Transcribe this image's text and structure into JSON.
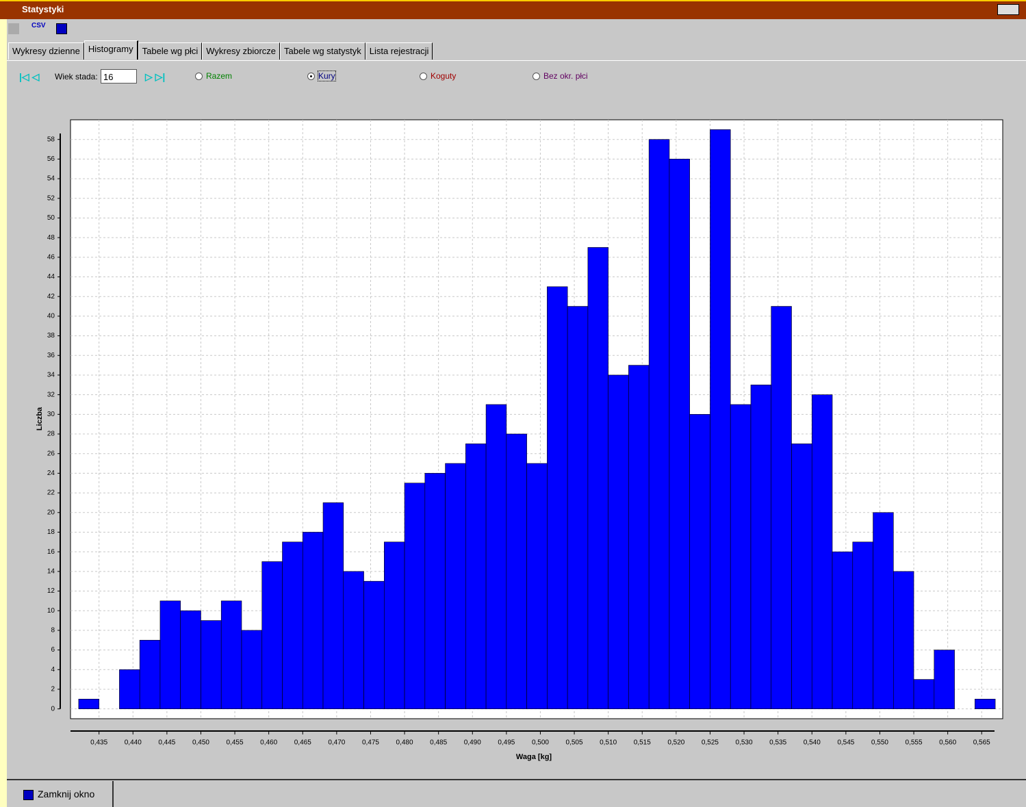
{
  "window": {
    "title": "Statystyki"
  },
  "toolbar": {
    "csv": "CSV"
  },
  "tabs": {
    "items": [
      "Wykresy dzienne",
      "Histogramy",
      "Tabele wg płci",
      "Wykresy zbiorcze",
      "Tabele wg statystyk",
      "Lista rejestracji"
    ],
    "active": 1
  },
  "controls": {
    "age_label": "Wiek stada:",
    "age_value": "16",
    "selected": 1,
    "radios": [
      {
        "label": "Razem",
        "color": "#008000"
      },
      {
        "label": "Kury",
        "color": "#000080"
      },
      {
        "label": "Koguty",
        "color": "#a00000"
      },
      {
        "label": "Bez okr. płci",
        "color": "#600060"
      }
    ]
  },
  "chart_data": {
    "type": "histogram",
    "xlabel": "Waga [kg]",
    "ylabel": "Liczba",
    "color": "#0000ff",
    "grid": true,
    "bins": [
      0.432,
      0.435,
      0.438,
      0.441,
      0.444,
      0.447,
      0.45,
      0.453,
      0.456,
      0.459,
      0.462,
      0.465,
      0.468,
      0.471,
      0.474,
      0.477,
      0.48,
      0.483,
      0.486,
      0.489,
      0.492,
      0.495,
      0.498,
      0.501,
      0.504,
      0.507,
      0.51,
      0.513,
      0.516,
      0.519,
      0.522,
      0.525,
      0.528,
      0.531,
      0.534,
      0.537,
      0.54,
      0.543,
      0.546,
      0.549,
      0.552,
      0.555,
      0.558,
      0.561,
      0.564,
      0.567
    ],
    "values": [
      1,
      0,
      4,
      7,
      11,
      10,
      9,
      11,
      8,
      15,
      17,
      18,
      21,
      14,
      13,
      17,
      23,
      24,
      25,
      27,
      31,
      28,
      25,
      43,
      41,
      47,
      34,
      35,
      58,
      56,
      30,
      59,
      31,
      33,
      41,
      27,
      32,
      16,
      17,
      20,
      14,
      3,
      6,
      0,
      1
    ],
    "xlim": [
      0.4308,
      0.5681
    ],
    "ylim": [
      -1,
      60
    ],
    "xticks": [
      {
        "value": 0.435,
        "label": "0,435"
      },
      {
        "value": 0.44,
        "label": "0,440"
      },
      {
        "value": 0.445,
        "label": "0,445"
      },
      {
        "value": 0.45,
        "label": "0,450"
      },
      {
        "value": 0.455,
        "label": "0,455"
      },
      {
        "value": 0.46,
        "label": "0,460"
      },
      {
        "value": 0.465,
        "label": "0,465"
      },
      {
        "value": 0.47,
        "label": "0,470"
      },
      {
        "value": 0.475,
        "label": "0,475"
      },
      {
        "value": 0.48,
        "label": "0,480"
      },
      {
        "value": 0.485,
        "label": "0,485"
      },
      {
        "value": 0.49,
        "label": "0,490"
      },
      {
        "value": 0.495,
        "label": "0,495"
      },
      {
        "value": 0.5,
        "label": "0,500"
      },
      {
        "value": 0.505,
        "label": "0,505"
      },
      {
        "value": 0.51,
        "label": "0,510"
      },
      {
        "value": 0.515,
        "label": "0,515"
      },
      {
        "value": 0.52,
        "label": "0,520"
      },
      {
        "value": 0.525,
        "label": "0,525"
      },
      {
        "value": 0.53,
        "label": "0,530"
      },
      {
        "value": 0.535,
        "label": "0,535"
      },
      {
        "value": 0.54,
        "label": "0,540"
      },
      {
        "value": 0.545,
        "label": "0,545"
      },
      {
        "value": 0.55,
        "label": "0,550"
      },
      {
        "value": 0.555,
        "label": "0,555"
      },
      {
        "value": 0.56,
        "label": "0,560"
      },
      {
        "value": 0.565,
        "label": "0,565"
      }
    ],
    "yticks": [
      0,
      2,
      4,
      6,
      8,
      10,
      12,
      14,
      16,
      18,
      20,
      22,
      24,
      26,
      28,
      30,
      32,
      34,
      36,
      38,
      40,
      42,
      44,
      46,
      48,
      50,
      52,
      54,
      56,
      58
    ]
  },
  "footer": {
    "close": "Zamknij okno"
  }
}
